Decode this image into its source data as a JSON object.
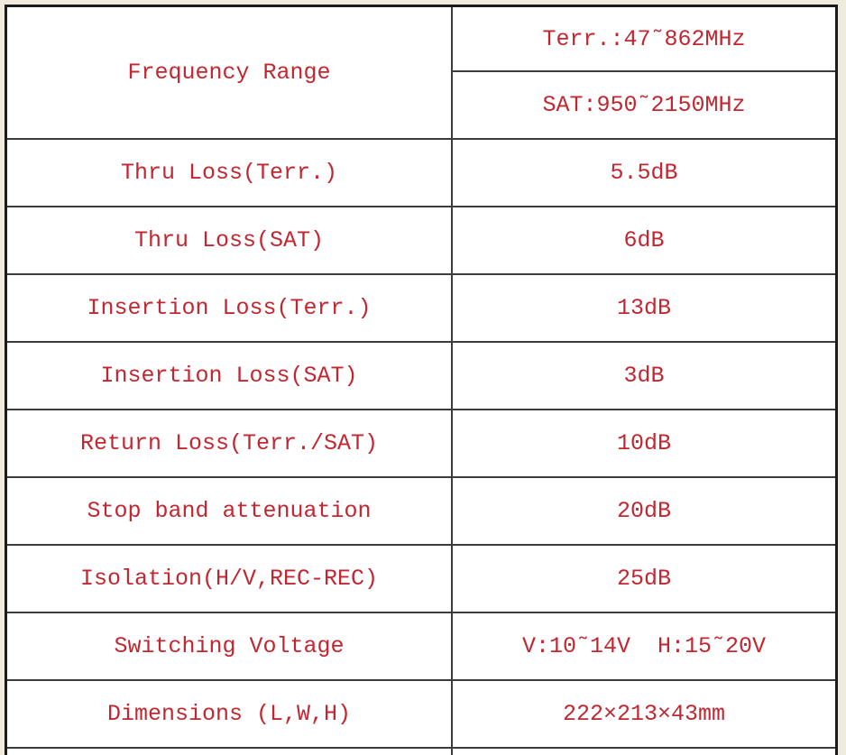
{
  "page": {
    "background_color": "#f0ebdc",
    "table_text_color": "#c22731",
    "grid_line_color": "#3c3c3c",
    "outer_border_color": "#1c1c1c"
  },
  "table": {
    "rows": [
      {
        "label": "Frequency Range",
        "values": [
          "Terr.:47˜862MHz",
          "SAT:950˜2150MHz"
        ]
      },
      {
        "label": "Thru Loss(Terr.)",
        "value": "5.5dB"
      },
      {
        "label": "Thru Loss(SAT)",
        "value": "6dB"
      },
      {
        "label": "Insertion Loss(Terr.)",
        "value": "13dB"
      },
      {
        "label": "Insertion Loss(SAT)",
        "value": "3dB"
      },
      {
        "label": "Return Loss(Terr./SAT)",
        "value": "10dB"
      },
      {
        "label": "Stop band attenuation",
        "value": "20dB"
      },
      {
        "label": "Isolation(H/V,REC-REC)",
        "value": "25dB"
      },
      {
        "label": "Switching Voltage",
        "value": "V:10˜14V  H:15˜20V"
      },
      {
        "label": "Dimensions (L,W,H)",
        "value": "222×213×43mm"
      }
    ]
  }
}
